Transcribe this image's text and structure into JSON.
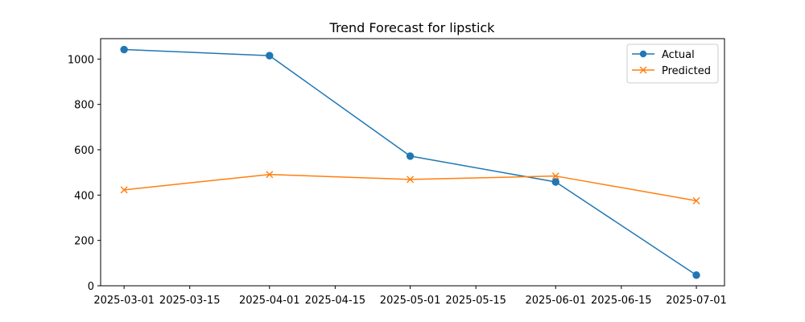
{
  "chart_data": {
    "type": "line",
    "title": "Trend Forecast for lipstick",
    "xlabel": "",
    "ylabel": "",
    "x": [
      "2025-03-01",
      "2025-04-01",
      "2025-05-01",
      "2025-06-01",
      "2025-07-01"
    ],
    "x_ticks": [
      "2025-03-01",
      "2025-03-15",
      "2025-04-01",
      "2025-04-15",
      "2025-05-01",
      "2025-05-15",
      "2025-06-01",
      "2025-06-15",
      "2025-07-01"
    ],
    "y_ticks": [
      0,
      200,
      400,
      600,
      800,
      1000
    ],
    "xlim": [
      "2025-02-24",
      "2025-07-07"
    ],
    "ylim": [
      0,
      1090
    ],
    "grid": false,
    "legend_position": "top-right",
    "series": [
      {
        "name": "Actual",
        "color": "#1f77b4",
        "marker": "circle",
        "values": [
          1042,
          1015,
          572,
          458,
          47
        ]
      },
      {
        "name": "Predicted",
        "color": "#ff7f0e",
        "marker": "x",
        "values": [
          423,
          491,
          469,
          484,
          375
        ]
      }
    ]
  }
}
